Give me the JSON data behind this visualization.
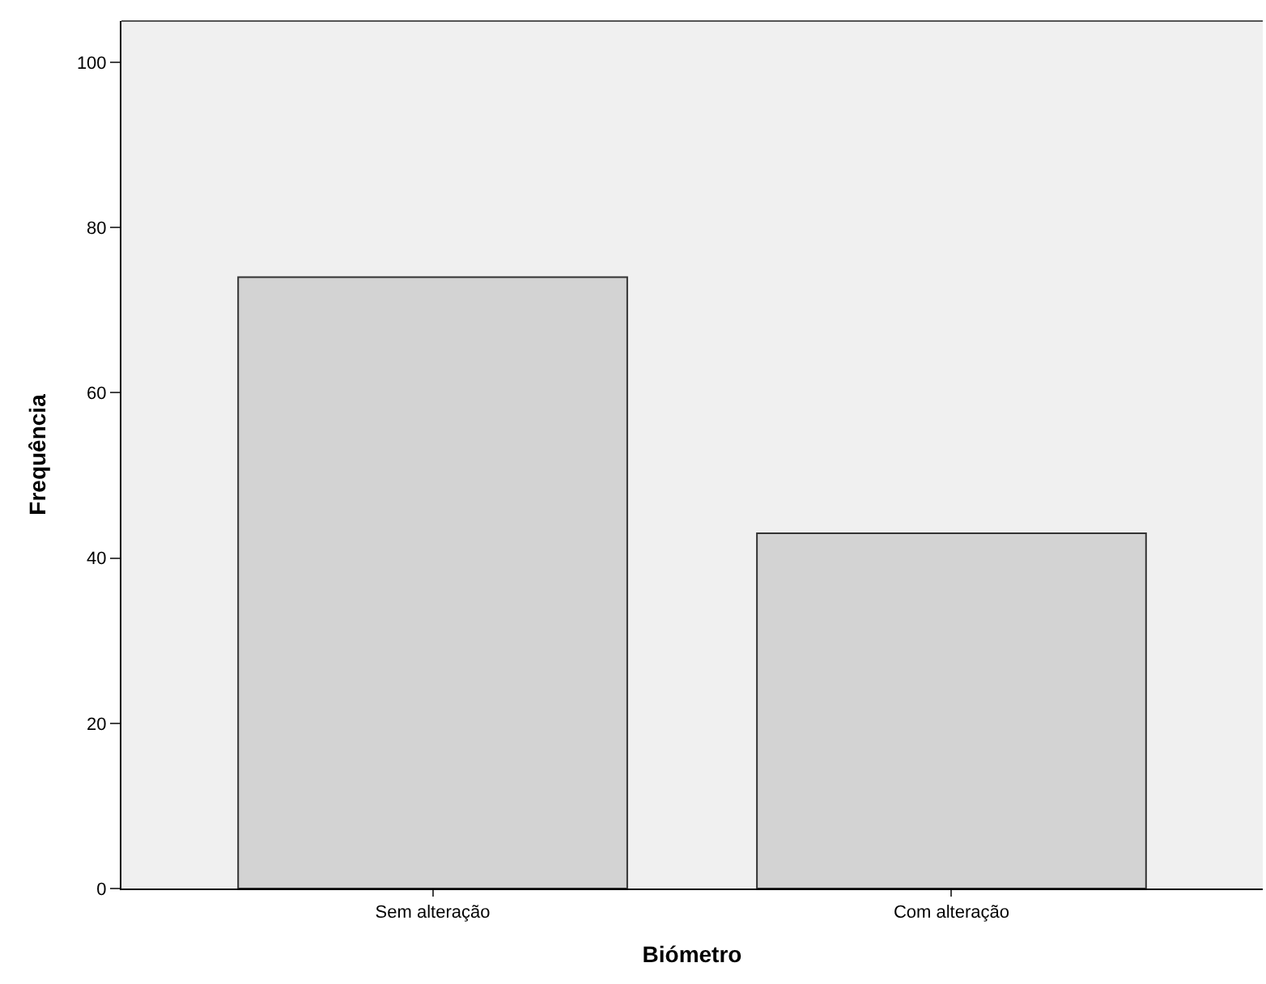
{
  "chart_data": {
    "type": "bar",
    "xlabel": "Biómetro",
    "ylabel": "Frequência",
    "categories": [
      "Sem alteração",
      "Com alteração"
    ],
    "values": [
      74,
      43
    ],
    "color": "#d3d3d3",
    "ylim": [
      0,
      105
    ],
    "yticks": [
      0,
      20,
      40,
      60,
      80,
      100
    ],
    "grid": false,
    "legend": false
  }
}
